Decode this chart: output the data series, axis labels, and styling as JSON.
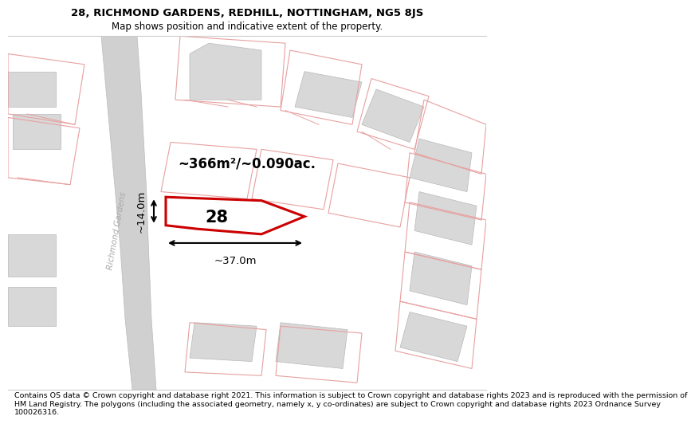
{
  "title": "28, RICHMOND GARDENS, REDHILL, NOTTINGHAM, NG5 8JS",
  "subtitle": "Map shows position and indicative extent of the property.",
  "footer": "Contains OS data © Crown copyright and database right 2021. This information is subject to Crown copyright and database rights 2023 and is reproduced with the permission of\nHM Land Registry. The polygons (including the associated geometry, namely x, y co-ordinates) are subject to Crown copyright and database rights 2023 Ordnance Survey\n100026316.",
  "area_label": "~366m²/~0.090ac.",
  "number_label": "28",
  "width_label": "~37.0m",
  "height_label": "~14.0m",
  "street_label": "Richmond Gardens",
  "map_bg": "#eeeded",
  "plot_color": "#cc0000",
  "gray_building": "#d8d8d8",
  "pink_outline": "#e8a0a0",
  "road_gray": "#d0d0d0",
  "fig_width": 6.0,
  "fig_height": 6.25,
  "title_fontsize": 9.5,
  "subtitle_fontsize": 8.5,
  "footer_fontsize": 6.8
}
